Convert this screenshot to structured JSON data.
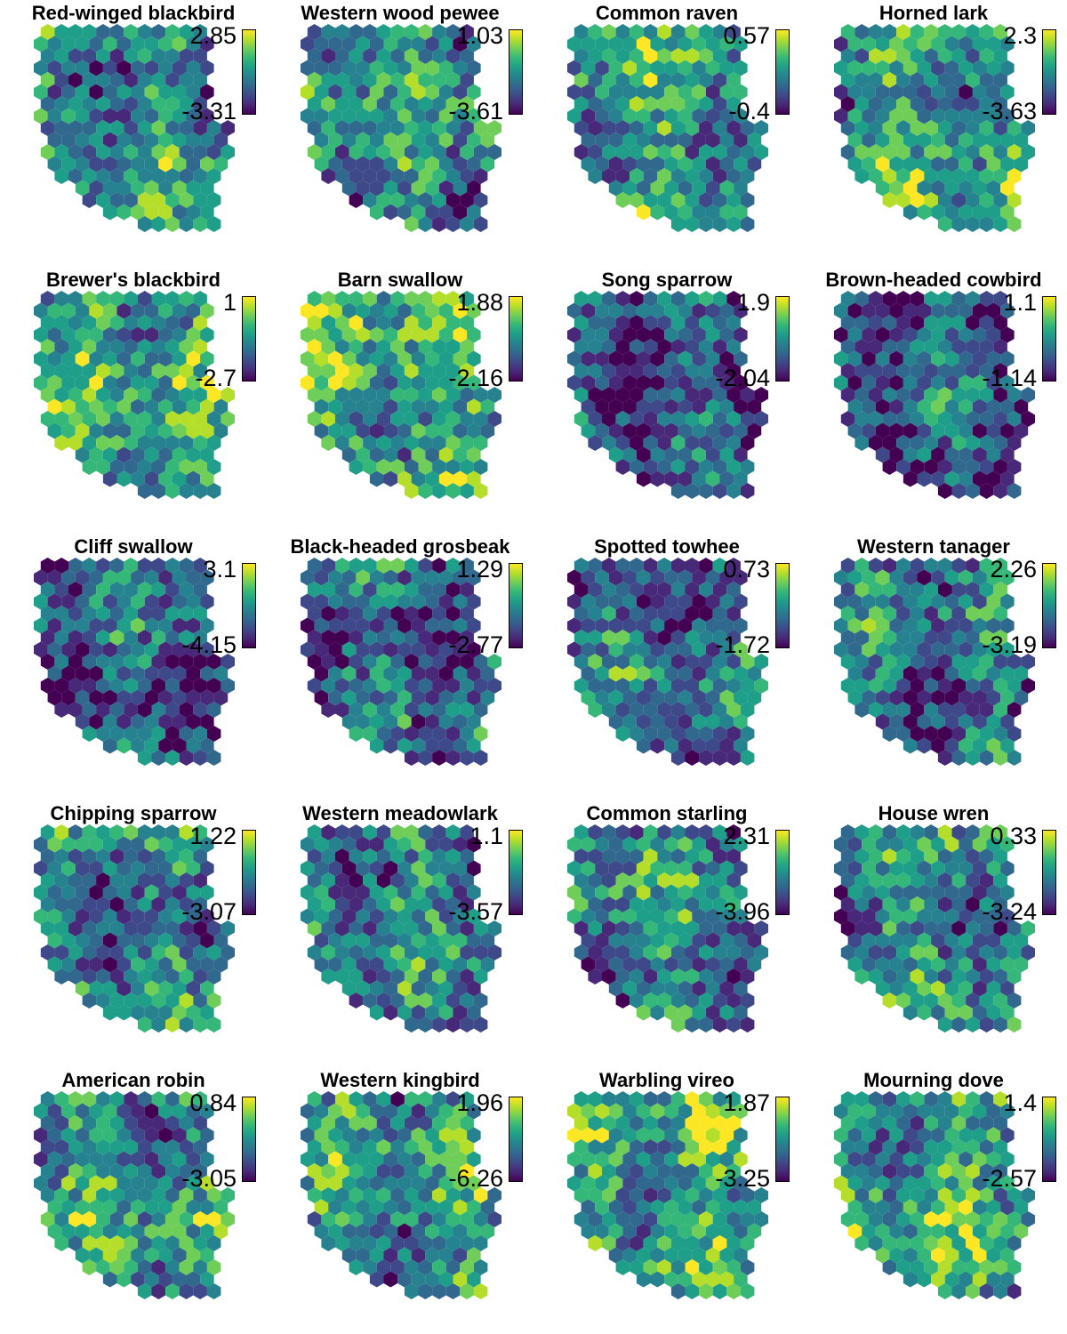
{
  "chart_data": {
    "type": "heatmap",
    "colormap": [
      "#440154",
      "#482878",
      "#3e4989",
      "#31688e",
      "#26828e",
      "#1f9e89",
      "#35b779",
      "#6ece58",
      "#b5de2b",
      "#fde725"
    ],
    "panels": [
      {
        "title": "Red-winged blackbird",
        "max": "2.85",
        "min": "-3.31"
      },
      {
        "title": "Western wood pewee",
        "max": "1.03",
        "min": "-3.61"
      },
      {
        "title": "Common raven",
        "max": "0.57",
        "min": "-0.4"
      },
      {
        "title": "Horned lark",
        "max": "2.3",
        "min": "-3.63"
      },
      {
        "title": "Brewer's blackbird",
        "max": "1",
        "min": "-2.7"
      },
      {
        "title": "Barn swallow",
        "max": "1.88",
        "min": "-2.16"
      },
      {
        "title": "Song sparrow",
        "max": "1.9",
        "min": "-2.04"
      },
      {
        "title": "Brown-headed cowbird",
        "max": "1.1",
        "min": "-1.14"
      },
      {
        "title": "Cliff swallow",
        "max": "3.1",
        "min": "-4.15"
      },
      {
        "title": "Black-headed grosbeak",
        "max": "1.29",
        "min": "-2.77"
      },
      {
        "title": "Spotted towhee",
        "max": "0.73",
        "min": "-1.72"
      },
      {
        "title": "Western tanager",
        "max": "2.26",
        "min": "-3.19"
      },
      {
        "title": "Chipping sparrow",
        "max": "1.22",
        "min": "-3.07"
      },
      {
        "title": "Western meadowlark",
        "max": "1.1",
        "min": "-3.57"
      },
      {
        "title": "Common starling",
        "max": "2.31",
        "min": "-3.96"
      },
      {
        "title": "House wren",
        "max": "0.33",
        "min": "-3.24"
      },
      {
        "title": "American robin",
        "max": "0.84",
        "min": "-3.05"
      },
      {
        "title": "Western kingbird",
        "max": "1.96",
        "min": "-6.26"
      },
      {
        "title": "Warbling vireo",
        "max": "1.87",
        "min": "-3.25"
      },
      {
        "title": "Mourning dove",
        "max": "1.4",
        "min": "-2.57"
      }
    ]
  }
}
